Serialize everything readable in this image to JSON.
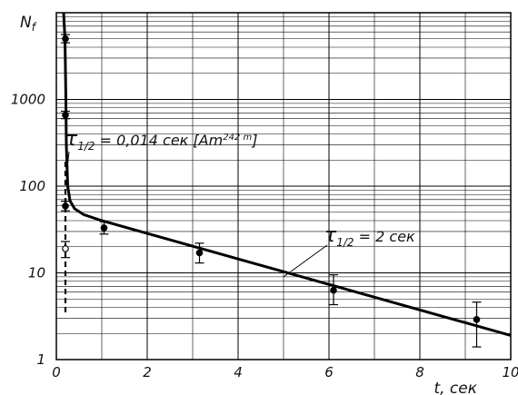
{
  "chart_data": {
    "type": "scatter",
    "title": "",
    "xlabel": "t, сек",
    "ylabel": "N_f",
    "xlim": [
      0,
      10
    ],
    "ylim": [
      1,
      10000
    ],
    "y_scale": "log",
    "grid": true,
    "x_ticks": [
      "0",
      "2",
      "4",
      "6",
      "8",
      "10"
    ],
    "y_ticks": [
      "1",
      "10",
      "100",
      "1000"
    ],
    "y_tick_values": [
      1,
      10,
      100,
      1000
    ],
    "points": [
      {
        "x": 0.2,
        "y": 5000,
        "yerr_low": 4500,
        "yerr_high": 5600,
        "filled": true
      },
      {
        "x": 0.2,
        "y": 660,
        "yerr_low": 600,
        "yerr_high": 730,
        "filled": true
      },
      {
        "x": 0.2,
        "y": 59,
        "yerr_low": 52,
        "yerr_high": 67,
        "filled": true
      },
      {
        "x": 0.2,
        "y": 19,
        "yerr_low": 15,
        "yerr_high": 23,
        "filled": false
      },
      {
        "x": 1.05,
        "y": 33,
        "yerr_low": 28,
        "yerr_high": 39,
        "filled": true
      },
      {
        "x": 3.15,
        "y": 17,
        "yerr_low": 13,
        "yerr_high": 22,
        "filled": true
      },
      {
        "x": 6.1,
        "y": 6.3,
        "yerr_low": 4.3,
        "yerr_high": 9.5,
        "filled": true
      },
      {
        "x": 9.25,
        "y": 2.9,
        "yerr_low": 1.4,
        "yerr_high": 4.6,
        "filled": true
      }
    ],
    "fit_curve": [
      [
        0.16,
        10000
      ],
      [
        0.19,
        5000
      ],
      [
        0.21,
        1000
      ],
      [
        0.22,
        300
      ],
      [
        0.25,
        100
      ],
      [
        0.3,
        68
      ],
      [
        0.4,
        55
      ],
      [
        0.6,
        47
      ],
      [
        1.0,
        40
      ],
      [
        10,
        1.9
      ]
    ],
    "dashed_line": {
      "x": 0.2,
      "y_from": 3.5,
      "y_to": 200
    },
    "annotations": [
      {
        "parts": [
          "τ",
          "1/2",
          " = 0,014 сек [Am",
          "242 m",
          "]"
        ],
        "points_to": {
          "x": 0.22,
          "y": 130
        }
      },
      {
        "parts": [
          "τ",
          "1/2",
          " = 2 сек"
        ],
        "points_to": {
          "x": 5.0,
          "y": 9
        }
      }
    ]
  }
}
